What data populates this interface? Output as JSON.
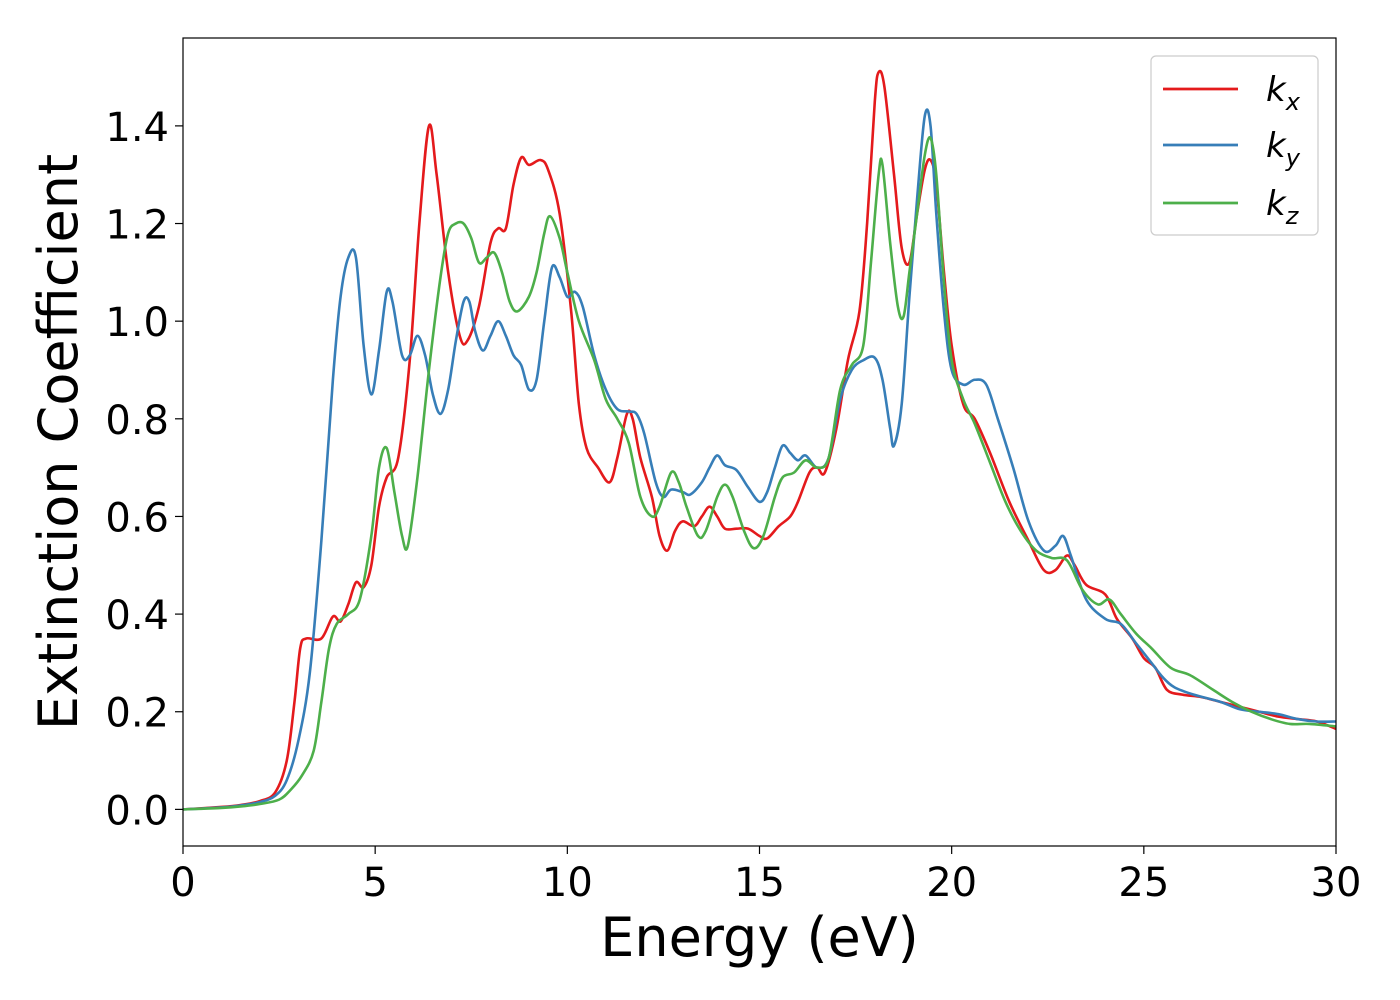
{
  "chart_data": {
    "type": "line",
    "xlabel": "Energy (eV)",
    "ylabel": "Extinction Coefficient",
    "xlim": [
      0,
      30
    ],
    "ylim": [
      -0.075,
      1.58
    ],
    "xticks": [
      "0",
      "5",
      "10",
      "15",
      "20",
      "25",
      "30"
    ],
    "yticks": [
      "0.0",
      "0.2",
      "0.4",
      "0.6",
      "0.8",
      "1.0",
      "1.2",
      "1.4"
    ],
    "grid": false,
    "legend_position": "top-right",
    "series": [
      {
        "name": "k_x",
        "color": "#e41a1c",
        "points": [
          [
            0,
            0.0
          ],
          [
            1,
            0.005
          ],
          [
            1.5,
            0.009
          ],
          [
            2,
            0.017
          ],
          [
            2.4,
            0.035
          ],
          [
            2.7,
            0.1
          ],
          [
            2.9,
            0.22
          ],
          [
            3.05,
            0.33
          ],
          [
            3.2,
            0.35
          ],
          [
            3.6,
            0.35
          ],
          [
            3.9,
            0.395
          ],
          [
            4.1,
            0.385
          ],
          [
            4.3,
            0.42
          ],
          [
            4.5,
            0.465
          ],
          [
            4.7,
            0.455
          ],
          [
            4.9,
            0.5
          ],
          [
            5.1,
            0.62
          ],
          [
            5.3,
            0.68
          ],
          [
            5.6,
            0.72
          ],
          [
            5.9,
            0.92
          ],
          [
            6.15,
            1.2
          ],
          [
            6.4,
            1.4
          ],
          [
            6.6,
            1.3
          ],
          [
            6.9,
            1.1
          ],
          [
            7.2,
            0.97
          ],
          [
            7.4,
            0.96
          ],
          [
            7.7,
            1.03
          ],
          [
            8,
            1.16
          ],
          [
            8.2,
            1.19
          ],
          [
            8.4,
            1.19
          ],
          [
            8.6,
            1.28
          ],
          [
            8.8,
            1.335
          ],
          [
            9,
            1.32
          ],
          [
            9.3,
            1.33
          ],
          [
            9.5,
            1.31
          ],
          [
            9.8,
            1.22
          ],
          [
            10.1,
            1.02
          ],
          [
            10.3,
            0.83
          ],
          [
            10.5,
            0.74
          ],
          [
            10.8,
            0.7
          ],
          [
            11.1,
            0.67
          ],
          [
            11.3,
            0.72
          ],
          [
            11.55,
            0.81
          ],
          [
            11.7,
            0.8
          ],
          [
            11.9,
            0.72
          ],
          [
            12.2,
            0.64
          ],
          [
            12.4,
            0.56
          ],
          [
            12.6,
            0.53
          ],
          [
            12.8,
            0.57
          ],
          [
            13,
            0.59
          ],
          [
            13.3,
            0.58
          ],
          [
            13.5,
            0.6
          ],
          [
            13.7,
            0.62
          ],
          [
            13.9,
            0.6
          ],
          [
            14.1,
            0.575
          ],
          [
            14.4,
            0.575
          ],
          [
            14.7,
            0.575
          ],
          [
            15,
            0.56
          ],
          [
            15.2,
            0.555
          ],
          [
            15.5,
            0.58
          ],
          [
            15.8,
            0.6
          ],
          [
            16,
            0.63
          ],
          [
            16.3,
            0.69
          ],
          [
            16.5,
            0.7
          ],
          [
            16.7,
            0.69
          ],
          [
            17,
            0.78
          ],
          [
            17.3,
            0.92
          ],
          [
            17.6,
            1.02
          ],
          [
            17.8,
            1.2
          ],
          [
            18,
            1.45
          ],
          [
            18.1,
            1.51
          ],
          [
            18.25,
            1.48
          ],
          [
            18.5,
            1.3
          ],
          [
            18.7,
            1.15
          ],
          [
            18.9,
            1.12
          ],
          [
            19.1,
            1.22
          ],
          [
            19.3,
            1.31
          ],
          [
            19.45,
            1.33
          ],
          [
            19.6,
            1.28
          ],
          [
            19.8,
            1.1
          ],
          [
            20,
            0.95
          ],
          [
            20.3,
            0.83
          ],
          [
            20.6,
            0.8
          ],
          [
            21,
            0.73
          ],
          [
            21.5,
            0.63
          ],
          [
            22,
            0.55
          ],
          [
            22.4,
            0.49
          ],
          [
            22.7,
            0.49
          ],
          [
            23,
            0.52
          ],
          [
            23.2,
            0.5
          ],
          [
            23.5,
            0.46
          ],
          [
            24,
            0.44
          ],
          [
            24.3,
            0.39
          ],
          [
            24.7,
            0.35
          ],
          [
            25,
            0.31
          ],
          [
            25.3,
            0.29
          ],
          [
            25.6,
            0.245
          ],
          [
            26,
            0.235
          ],
          [
            26.5,
            0.23
          ],
          [
            27,
            0.22
          ],
          [
            27.5,
            0.21
          ],
          [
            28,
            0.2
          ],
          [
            28.5,
            0.19
          ],
          [
            29,
            0.185
          ],
          [
            29.5,
            0.18
          ],
          [
            30,
            0.165
          ]
        ]
      },
      {
        "name": "k_y",
        "color": "#377eb8",
        "points": [
          [
            0,
            0.0
          ],
          [
            1,
            0.004
          ],
          [
            1.5,
            0.008
          ],
          [
            2,
            0.015
          ],
          [
            2.4,
            0.028
          ],
          [
            2.7,
            0.06
          ],
          [
            3,
            0.14
          ],
          [
            3.3,
            0.28
          ],
          [
            3.6,
            0.55
          ],
          [
            3.9,
            0.88
          ],
          [
            4.1,
            1.05
          ],
          [
            4.3,
            1.13
          ],
          [
            4.5,
            1.13
          ],
          [
            4.7,
            0.95
          ],
          [
            4.9,
            0.85
          ],
          [
            5.1,
            0.94
          ],
          [
            5.3,
            1.06
          ],
          [
            5.45,
            1.04
          ],
          [
            5.7,
            0.93
          ],
          [
            5.9,
            0.93
          ],
          [
            6.1,
            0.97
          ],
          [
            6.3,
            0.93
          ],
          [
            6.5,
            0.85
          ],
          [
            6.7,
            0.81
          ],
          [
            6.9,
            0.86
          ],
          [
            7.1,
            0.96
          ],
          [
            7.3,
            1.04
          ],
          [
            7.45,
            1.04
          ],
          [
            7.6,
            0.98
          ],
          [
            7.8,
            0.94
          ],
          [
            8,
            0.97
          ],
          [
            8.2,
            1.0
          ],
          [
            8.4,
            0.97
          ],
          [
            8.6,
            0.93
          ],
          [
            8.8,
            0.91
          ],
          [
            9,
            0.86
          ],
          [
            9.2,
            0.88
          ],
          [
            9.4,
            1.0
          ],
          [
            9.6,
            1.11
          ],
          [
            9.8,
            1.09
          ],
          [
            10,
            1.05
          ],
          [
            10.2,
            1.06
          ],
          [
            10.4,
            1.03
          ],
          [
            10.7,
            0.93
          ],
          [
            11,
            0.86
          ],
          [
            11.3,
            0.82
          ],
          [
            11.6,
            0.815
          ],
          [
            11.8,
            0.81
          ],
          [
            12,
            0.77
          ],
          [
            12.3,
            0.67
          ],
          [
            12.5,
            0.64
          ],
          [
            12.7,
            0.655
          ],
          [
            13,
            0.65
          ],
          [
            13.2,
            0.645
          ],
          [
            13.5,
            0.67
          ],
          [
            13.7,
            0.7
          ],
          [
            13.9,
            0.725
          ],
          [
            14.1,
            0.705
          ],
          [
            14.4,
            0.695
          ],
          [
            14.7,
            0.66
          ],
          [
            15,
            0.63
          ],
          [
            15.2,
            0.65
          ],
          [
            15.4,
            0.7
          ],
          [
            15.6,
            0.745
          ],
          [
            15.8,
            0.73
          ],
          [
            16,
            0.715
          ],
          [
            16.2,
            0.725
          ],
          [
            16.5,
            0.7
          ],
          [
            16.8,
            0.72
          ],
          [
            17.1,
            0.84
          ],
          [
            17.4,
            0.9
          ],
          [
            17.7,
            0.92
          ],
          [
            18,
            0.925
          ],
          [
            18.2,
            0.88
          ],
          [
            18.4,
            0.78
          ],
          [
            18.5,
            0.745
          ],
          [
            18.7,
            0.83
          ],
          [
            18.9,
            1.05
          ],
          [
            19.1,
            1.25
          ],
          [
            19.3,
            1.42
          ],
          [
            19.45,
            1.4
          ],
          [
            19.6,
            1.22
          ],
          [
            19.8,
            1.02
          ],
          [
            20,
            0.9
          ],
          [
            20.3,
            0.87
          ],
          [
            20.6,
            0.88
          ],
          [
            20.9,
            0.87
          ],
          [
            21.2,
            0.8
          ],
          [
            21.6,
            0.7
          ],
          [
            22,
            0.59
          ],
          [
            22.4,
            0.53
          ],
          [
            22.7,
            0.54
          ],
          [
            22.9,
            0.56
          ],
          [
            23.1,
            0.52
          ],
          [
            23.5,
            0.43
          ],
          [
            24,
            0.39
          ],
          [
            24.4,
            0.38
          ],
          [
            24.8,
            0.34
          ],
          [
            25.2,
            0.3
          ],
          [
            25.5,
            0.27
          ],
          [
            25.8,
            0.25
          ],
          [
            26.3,
            0.235
          ],
          [
            27,
            0.22
          ],
          [
            27.5,
            0.205
          ],
          [
            28,
            0.2
          ],
          [
            28.5,
            0.195
          ],
          [
            29,
            0.185
          ],
          [
            29.5,
            0.18
          ],
          [
            30,
            0.18
          ]
        ]
      },
      {
        "name": "k_z",
        "color": "#4daf4a",
        "points": [
          [
            0,
            0.0
          ],
          [
            1,
            0.003
          ],
          [
            1.5,
            0.006
          ],
          [
            2,
            0.011
          ],
          [
            2.5,
            0.02
          ],
          [
            2.8,
            0.04
          ],
          [
            3.1,
            0.07
          ],
          [
            3.4,
            0.12
          ],
          [
            3.6,
            0.22
          ],
          [
            3.8,
            0.33
          ],
          [
            4,
            0.38
          ],
          [
            4.3,
            0.4
          ],
          [
            4.6,
            0.43
          ],
          [
            4.9,
            0.56
          ],
          [
            5.1,
            0.7
          ],
          [
            5.3,
            0.74
          ],
          [
            5.5,
            0.65
          ],
          [
            5.7,
            0.56
          ],
          [
            5.85,
            0.54
          ],
          [
            6.1,
            0.68
          ],
          [
            6.4,
            0.9
          ],
          [
            6.7,
            1.09
          ],
          [
            6.9,
            1.18
          ],
          [
            7.1,
            1.2
          ],
          [
            7.3,
            1.2
          ],
          [
            7.5,
            1.17
          ],
          [
            7.7,
            1.12
          ],
          [
            7.9,
            1.13
          ],
          [
            8.1,
            1.14
          ],
          [
            8.3,
            1.1
          ],
          [
            8.5,
            1.04
          ],
          [
            8.7,
            1.02
          ],
          [
            9,
            1.05
          ],
          [
            9.2,
            1.1
          ],
          [
            9.4,
            1.18
          ],
          [
            9.55,
            1.215
          ],
          [
            9.8,
            1.17
          ],
          [
            10,
            1.1
          ],
          [
            10.3,
            1.0
          ],
          [
            10.7,
            0.92
          ],
          [
            11,
            0.84
          ],
          [
            11.3,
            0.8
          ],
          [
            11.6,
            0.75
          ],
          [
            11.9,
            0.64
          ],
          [
            12.2,
            0.6
          ],
          [
            12.4,
            0.62
          ],
          [
            12.7,
            0.69
          ],
          [
            12.9,
            0.67
          ],
          [
            13.1,
            0.62
          ],
          [
            13.4,
            0.56
          ],
          [
            13.6,
            0.57
          ],
          [
            13.9,
            0.64
          ],
          [
            14.1,
            0.665
          ],
          [
            14.3,
            0.64
          ],
          [
            14.6,
            0.57
          ],
          [
            14.85,
            0.535
          ],
          [
            15.1,
            0.56
          ],
          [
            15.4,
            0.64
          ],
          [
            15.6,
            0.68
          ],
          [
            15.9,
            0.69
          ],
          [
            16.2,
            0.715
          ],
          [
            16.5,
            0.7
          ],
          [
            16.8,
            0.72
          ],
          [
            17.1,
            0.86
          ],
          [
            17.4,
            0.91
          ],
          [
            17.7,
            0.95
          ],
          [
            17.9,
            1.12
          ],
          [
            18.1,
            1.3
          ],
          [
            18.2,
            1.32
          ],
          [
            18.4,
            1.16
          ],
          [
            18.6,
            1.03
          ],
          [
            18.75,
            1.01
          ],
          [
            18.9,
            1.1
          ],
          [
            19.1,
            1.22
          ],
          [
            19.3,
            1.34
          ],
          [
            19.45,
            1.375
          ],
          [
            19.6,
            1.3
          ],
          [
            19.8,
            1.08
          ],
          [
            20,
            0.92
          ],
          [
            20.3,
            0.84
          ],
          [
            20.6,
            0.79
          ],
          [
            21,
            0.71
          ],
          [
            21.4,
            0.63
          ],
          [
            21.8,
            0.57
          ],
          [
            22.2,
            0.53
          ],
          [
            22.6,
            0.515
          ],
          [
            23,
            0.51
          ],
          [
            23.4,
            0.45
          ],
          [
            23.8,
            0.42
          ],
          [
            24.1,
            0.43
          ],
          [
            24.4,
            0.4
          ],
          [
            24.8,
            0.36
          ],
          [
            25.2,
            0.33
          ],
          [
            25.7,
            0.29
          ],
          [
            26.2,
            0.275
          ],
          [
            26.8,
            0.245
          ],
          [
            27.3,
            0.22
          ],
          [
            27.8,
            0.2
          ],
          [
            28.3,
            0.185
          ],
          [
            28.8,
            0.175
          ],
          [
            29.3,
            0.175
          ],
          [
            30,
            0.17
          ]
        ]
      }
    ]
  }
}
